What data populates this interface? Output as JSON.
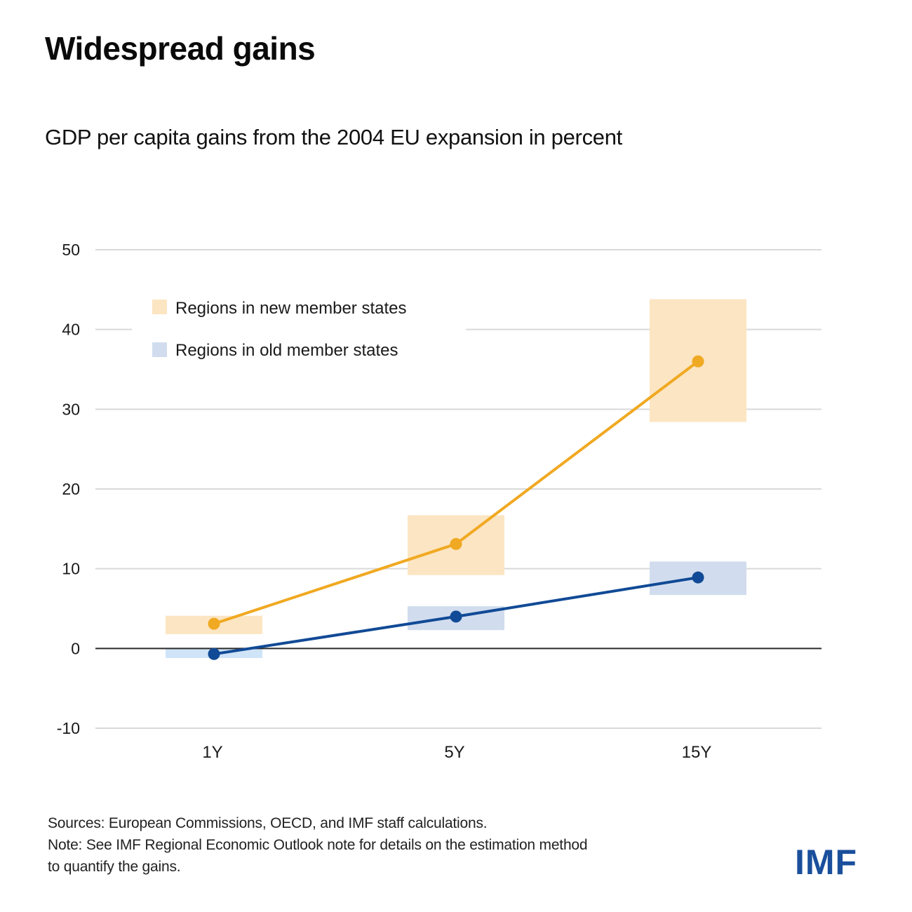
{
  "header": {
    "title": "Widespread gains",
    "subtitle": "GDP per capita gains from the 2004 EU expansion in percent"
  },
  "chart_data": {
    "type": "line",
    "title": "GDP per capita gains from the 2004 EU expansion in percent",
    "xlabel": "",
    "ylabel": "",
    "categories": [
      "1Y",
      "5Y",
      "15Y"
    ],
    "ylim": [
      -10,
      50
    ],
    "yticks": [
      50,
      40,
      30,
      20,
      10,
      0,
      -10
    ],
    "ytick_labels": [
      "50",
      "40",
      "30",
      "20",
      "10",
      "0",
      "-10"
    ],
    "grid": true,
    "legend_position": "top-left",
    "series": [
      {
        "name": "Regions in new member states",
        "line_color": "#f0a922",
        "band_color": "#fce5c2",
        "values": [
          3.1,
          13.1,
          36.0
        ],
        "ranges": [
          [
            1.8,
            4.1
          ],
          [
            9.2,
            16.7
          ],
          [
            28.4,
            43.8
          ]
        ]
      },
      {
        "name": "Regions in old member states",
        "line_color": "#114a96",
        "band_color": "#d1ddee",
        "band_colors": [
          "#d0e4f7",
          "#d1ddee",
          "#d1ddee"
        ],
        "values": [
          -0.7,
          4.0,
          8.9
        ],
        "ranges": [
          [
            -1.2,
            0.0
          ],
          [
            2.3,
            5.3
          ],
          [
            6.7,
            10.9
          ]
        ]
      }
    ]
  },
  "footer": {
    "sources": "Sources: European Commissions, OECD, and IMF staff calculations.",
    "note_line1": "Note: See IMF Regional Economic Outlook note for details on the estimation method",
    "note_line2": "to quantify the gains.",
    "logo_text": "IMF",
    "logo_color": "#1a4f9c"
  }
}
